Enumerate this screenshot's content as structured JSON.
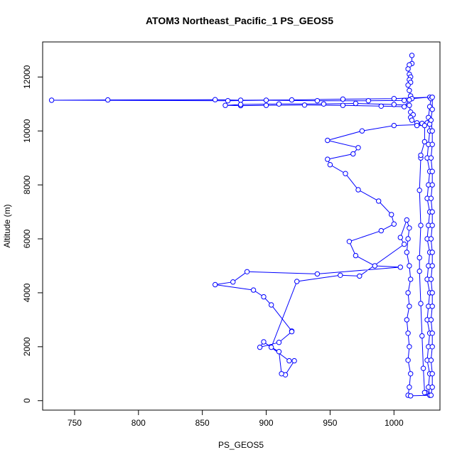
{
  "chart_data": {
    "type": "line",
    "title": "ATOM3 Northeast_Pacific_1 PS_GEOS5",
    "xlabel": "PS_GEOS5",
    "ylabel": "Altitude (m)",
    "xlim": [
      725,
      1036
    ],
    "ylim": [
      -350,
      13300
    ],
    "x_ticks": [
      750,
      800,
      850,
      900,
      950,
      1000
    ],
    "y_ticks": [
      0,
      2000,
      4000,
      6000,
      8000,
      10000,
      12000
    ],
    "grid": false,
    "legend": "none",
    "marker": "open-circle",
    "color": "#0000ff",
    "series": [
      {
        "values": [
          [
            1014,
            12800
          ],
          [
            1014,
            12500
          ],
          [
            1012,
            12450
          ],
          [
            1011,
            12300
          ],
          [
            1012,
            12100
          ],
          [
            1013,
            12000
          ],
          [
            1012,
            11900
          ],
          [
            1013,
            11800
          ],
          [
            1011,
            11700
          ],
          [
            1012,
            11500
          ],
          [
            1013,
            11300
          ],
          [
            1014,
            11200
          ],
          [
            1028,
            11250
          ],
          [
            1000,
            11200
          ],
          [
            960,
            11180
          ],
          [
            920,
            11150
          ],
          [
            880,
            11140
          ],
          [
            860,
            11160
          ],
          [
            776,
            11150
          ],
          [
            732,
            11140
          ],
          [
            870,
            11120
          ],
          [
            900,
            11140
          ],
          [
            940,
            11120
          ],
          [
            980,
            11120
          ],
          [
            1008,
            11130
          ],
          [
            1012,
            11150
          ],
          [
            1008,
            10900
          ],
          [
            990,
            10920
          ],
          [
            960,
            10950
          ],
          [
            930,
            10960
          ],
          [
            900,
            10950
          ],
          [
            880,
            10940
          ],
          [
            868,
            10950
          ],
          [
            880,
            10980
          ],
          [
            910,
            11000
          ],
          [
            945,
            11000
          ],
          [
            970,
            11020
          ],
          [
            1000,
            10980
          ],
          [
            1012,
            10950
          ],
          [
            1013,
            10700
          ],
          [
            1015,
            10600
          ],
          [
            1013,
            10500
          ],
          [
            1014,
            10400
          ],
          [
            1018,
            10300
          ],
          [
            1022,
            10280
          ],
          [
            1026,
            10300
          ],
          [
            1028,
            10250
          ],
          [
            1000,
            10200
          ],
          [
            975,
            10000
          ],
          [
            948,
            9650
          ],
          [
            972,
            9380
          ],
          [
            968,
            9150
          ],
          [
            948,
            8950
          ],
          [
            950,
            8750
          ],
          [
            962,
            8420
          ],
          [
            972,
            7820
          ],
          [
            988,
            7400
          ],
          [
            998,
            6900
          ],
          [
            1000,
            6550
          ],
          [
            990,
            6300
          ],
          [
            965,
            5900
          ],
          [
            970,
            5380
          ],
          [
            985,
            5000
          ],
          [
            1005,
            4950
          ],
          [
            940,
            4700
          ],
          [
            885,
            4780
          ],
          [
            874,
            4400
          ],
          [
            860,
            4300
          ],
          [
            890,
            4100
          ],
          [
            898,
            3850
          ],
          [
            904,
            3550
          ],
          [
            920,
            2580
          ],
          [
            920,
            2560
          ],
          [
            910,
            2160
          ],
          [
            895,
            1980
          ],
          [
            898,
            2180
          ],
          [
            918,
            1480
          ],
          [
            922,
            1480
          ],
          [
            915,
            960
          ],
          [
            912,
            1000
          ],
          [
            910,
            1820
          ],
          [
            904,
            1980
          ],
          [
            924,
            4420
          ],
          [
            958,
            4650
          ],
          [
            973,
            4620
          ],
          [
            1008,
            5800
          ],
          [
            1005,
            6050
          ],
          [
            1010,
            6700
          ],
          [
            1012,
            6400
          ],
          [
            1011,
            6000
          ],
          [
            1010,
            5500
          ],
          [
            1012,
            5000
          ],
          [
            1013,
            4500
          ],
          [
            1011,
            4000
          ],
          [
            1012,
            3500
          ],
          [
            1010,
            3000
          ],
          [
            1011,
            2500
          ],
          [
            1012,
            2000
          ],
          [
            1011,
            1500
          ],
          [
            1013,
            1000
          ],
          [
            1012,
            500
          ],
          [
            1011,
            200
          ],
          [
            1013,
            180
          ],
          [
            1028,
            200
          ],
          [
            1027,
            500
          ],
          [
            1028,
            1000
          ],
          [
            1026,
            1500
          ],
          [
            1027,
            2000
          ],
          [
            1028,
            2500
          ],
          [
            1026,
            3000
          ],
          [
            1027,
            3500
          ],
          [
            1028,
            4000
          ],
          [
            1026,
            4500
          ],
          [
            1027,
            5000
          ],
          [
            1028,
            5500
          ],
          [
            1026,
            6000
          ],
          [
            1027,
            6500
          ],
          [
            1028,
            7000
          ],
          [
            1026,
            7500
          ],
          [
            1027,
            8000
          ],
          [
            1028,
            8500
          ],
          [
            1026,
            9000
          ],
          [
            1027,
            9500
          ],
          [
            1028,
            10000
          ],
          [
            1027,
            10500
          ],
          [
            1028,
            10900
          ],
          [
            1029,
            11200
          ],
          [
            1030,
            11250
          ],
          [
            1030,
            10800
          ],
          [
            1029,
            10400
          ],
          [
            1030,
            10000
          ],
          [
            1030,
            9500
          ],
          [
            1029,
            9000
          ],
          [
            1030,
            8500
          ],
          [
            1030,
            8000
          ],
          [
            1029,
            7500
          ],
          [
            1030,
            7000
          ],
          [
            1030,
            6500
          ],
          [
            1029,
            6000
          ],
          [
            1030,
            5500
          ],
          [
            1030,
            5000
          ],
          [
            1029,
            4500
          ],
          [
            1030,
            4000
          ],
          [
            1030,
            3500
          ],
          [
            1029,
            3000
          ],
          [
            1030,
            2500
          ],
          [
            1030,
            2000
          ],
          [
            1029,
            1500
          ],
          [
            1030,
            1000
          ],
          [
            1030,
            500
          ],
          [
            1029,
            200
          ],
          [
            1025,
            300
          ],
          [
            1024,
            300
          ],
          [
            1023,
            1200
          ],
          [
            1022,
            2400
          ],
          [
            1021,
            3600
          ],
          [
            1020,
            4800
          ],
          [
            1020,
            5300
          ],
          [
            1021,
            6500
          ],
          [
            1020,
            7800
          ],
          [
            1021,
            9000
          ],
          [
            1021,
            9100
          ],
          [
            1024,
            9600
          ],
          [
            1024,
            10200
          ],
          [
            1018,
            10200
          ]
        ]
      }
    ]
  }
}
